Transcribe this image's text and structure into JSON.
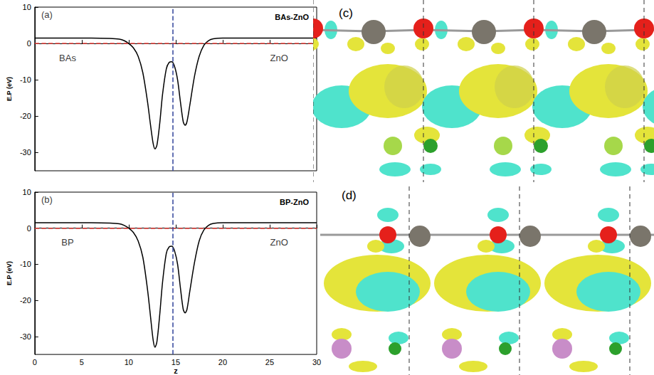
{
  "chart_data": [
    {
      "type": "line",
      "title": "BAs-ZnO",
      "y_label": "E.P (eV)",
      "x": [
        0,
        2,
        4,
        6,
        8,
        9,
        9.5,
        10,
        10.5,
        11,
        11.5,
        12,
        12.3,
        12.6,
        12.8,
        13,
        13.3,
        13.6,
        14,
        14.3,
        14.6,
        14.9,
        15.2,
        15.5,
        15.8,
        16,
        16.2,
        16.5,
        17,
        17.5,
        18,
        18.5,
        19,
        20,
        22,
        25,
        30
      ],
      "values": [
        1.5,
        1.5,
        1.5,
        1.5,
        1.4,
        1.2,
        0.8,
        0,
        -1.2,
        -3.5,
        -8,
        -16,
        -22,
        -27.5,
        -29,
        -28,
        -22,
        -14,
        -7,
        -5.2,
        -5,
        -6.5,
        -10,
        -16,
        -21.5,
        -22.5,
        -21.5,
        -17,
        -9,
        -3.5,
        -0.5,
        0.8,
        1.3,
        1.5,
        1.5,
        1.5,
        1.5
      ],
      "color": "#000000",
      "xlim": [
        0,
        30
      ],
      "xticks": [
        0,
        5,
        10,
        15,
        20,
        25,
        30
      ],
      "ylim": [
        -35,
        10
      ],
      "yticks": [
        -30,
        -20,
        -10,
        0,
        10
      ],
      "grid": false,
      "tick_labels": "y",
      "reference_lines": [
        {
          "axis": "y",
          "value": 0,
          "color": "#e8413c",
          "line_style": "dashed"
        },
        {
          "axis": "x",
          "value": 14.7,
          "color": "#3c4ea0",
          "line_style": "dashed"
        }
      ],
      "annotations": [
        {
          "text": "(a)",
          "x": 1.3,
          "y": 8
        },
        {
          "text": "BAs",
          "x": 3.5,
          "y": -4
        },
        {
          "text": "ZnO",
          "x": 26,
          "y": -4
        }
      ]
    },
    {
      "type": "line",
      "title": "BP-ZnO",
      "y_label": "E.P (eV)",
      "x_label": "z",
      "x": [
        0,
        2,
        4,
        6,
        8,
        9,
        9.5,
        10,
        10.5,
        11,
        11.5,
        12,
        12.3,
        12.6,
        12.8,
        13,
        13.3,
        13.6,
        14,
        14.3,
        14.6,
        14.9,
        15.2,
        15.5,
        15.8,
        16,
        16.2,
        16.5,
        17,
        17.5,
        18,
        18.5,
        19,
        20,
        22,
        25,
        30
      ],
      "values": [
        1.5,
        1.5,
        1.5,
        1.5,
        1.4,
        1.2,
        0.8,
        0,
        -1.2,
        -3.5,
        -8,
        -17,
        -24,
        -31,
        -33,
        -31.5,
        -24,
        -15,
        -7,
        -5.2,
        -5,
        -6.5,
        -10,
        -16.5,
        -22.5,
        -23.5,
        -22.5,
        -17.5,
        -9.5,
        -3.5,
        -0.5,
        0.8,
        1.3,
        1.5,
        1.5,
        1.5,
        1.5
      ],
      "color": "#000000",
      "xlim": [
        0,
        30
      ],
      "xticks": [
        0,
        5,
        10,
        15,
        20,
        25,
        30
      ],
      "ylim": [
        -35,
        10
      ],
      "yticks": [
        -30,
        -20,
        -10,
        0,
        10
      ],
      "grid": false,
      "reference_lines": [
        {
          "axis": "y",
          "value": 0,
          "color": "#e8413c",
          "line_style": "dashed"
        },
        {
          "axis": "x",
          "value": 14.7,
          "color": "#3c4ea0",
          "line_style": "dashed"
        }
      ],
      "annotations": [
        {
          "text": "(b)",
          "x": 1.3,
          "y": 8
        },
        {
          "text": "BP",
          "x": 3.5,
          "y": -4
        },
        {
          "text": "ZnO",
          "x": 26,
          "y": -4
        }
      ]
    }
  ],
  "images": [
    {
      "label": "(c)"
    },
    {
      "label": "(d)"
    }
  ]
}
